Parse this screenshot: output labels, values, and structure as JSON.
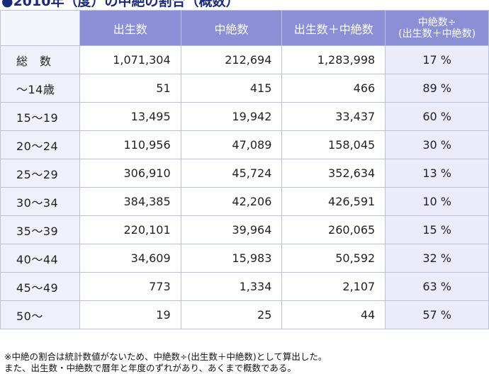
{
  "title": "●2010年（度）の中絶の割合（概数）",
  "header": {
    "col1": "出生数",
    "col2": "中絶数",
    "col3": "出生数＋中絶数",
    "col4_line1": "中絶数÷",
    "col4_line2": "(出生数＋中絶数)"
  },
  "rows": [
    {
      "label": "総　数",
      "births": "1,071,304",
      "abortions": "212,694",
      "total": "1,283,998",
      "ratio": "17 %"
    },
    {
      "label": "〜14歳",
      "births": "51",
      "abortions": "415",
      "total": "466",
      "ratio": "89 %"
    },
    {
      "label": "15〜19",
      "births": "13,495",
      "abortions": "19,942",
      "total": "33,437",
      "ratio": "60 %"
    },
    {
      "label": "20〜24",
      "births": "110,956",
      "abortions": "47,089",
      "total": "158,045",
      "ratio": "30 %"
    },
    {
      "label": "25〜29",
      "births": "306,910",
      "abortions": "45,724",
      "total": "352,634",
      "ratio": "13 %"
    },
    {
      "label": "30〜34",
      "births": "384,385",
      "abortions": "42,206",
      "total": "426,591",
      "ratio": "10 %"
    },
    {
      "label": "35〜39",
      "births": "220,101",
      "abortions": "39,964",
      "total": "260,065",
      "ratio": "15 %"
    },
    {
      "label": "40〜44",
      "births": "34,609",
      "abortions": "15,983",
      "total": "50,592",
      "ratio": "32 %"
    },
    {
      "label": "45〜49",
      "births": "773",
      "abortions": "1,334",
      "total": "2,107",
      "ratio": "63 %"
    },
    {
      "label": "50〜",
      "births": "19",
      "abortions": "25",
      "total": "44",
      "ratio": "57 %"
    }
  ],
  "note1": "※中絶の割合は統計数値がないため、中絶数÷(出生数＋中絶数)として算出した。",
  "note2": "また、出生数・中絶数で暦年と年度のずれがあり、あくまで概数である。"
}
